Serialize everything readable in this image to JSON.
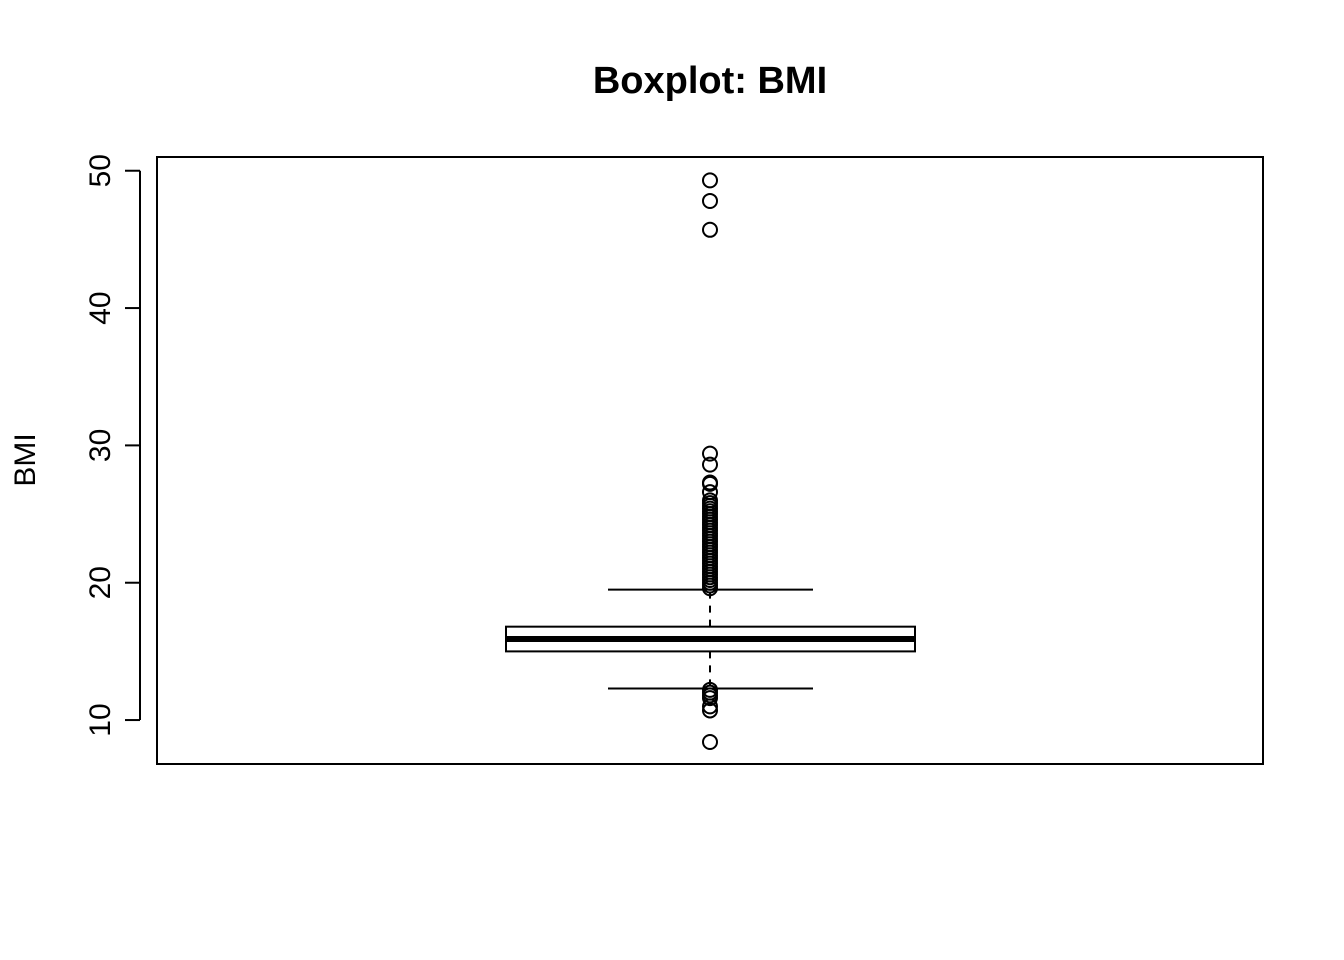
{
  "chart_data": {
    "type": "boxplot",
    "title": "Boxplot: BMI",
    "xlabel": "",
    "ylabel": "BMI",
    "ylim": [
      6.8,
      51.0
    ],
    "yticks": [
      10,
      20,
      30,
      40,
      50
    ],
    "grid": false,
    "legend": "none",
    "box": {
      "lower_whisker": 12.3,
      "q1": 15.0,
      "median": 15.9,
      "q3": 16.8,
      "upper_whisker": 19.5
    },
    "outliers": [
      49.3,
      47.8,
      45.7,
      29.4,
      28.6,
      27.3,
      27.2,
      26.6,
      26.0,
      25.8,
      25.6,
      25.4,
      25.2,
      25.0,
      24.8,
      24.6,
      24.4,
      24.2,
      24.0,
      23.8,
      23.6,
      23.4,
      23.2,
      23.0,
      22.8,
      22.6,
      22.4,
      22.2,
      22.0,
      21.8,
      21.6,
      21.4,
      21.2,
      21.0,
      20.8,
      20.6,
      20.4,
      20.2,
      20.0,
      19.8,
      19.6,
      12.2,
      12.0,
      11.8,
      11.6,
      11.0,
      10.7,
      8.4
    ]
  }
}
